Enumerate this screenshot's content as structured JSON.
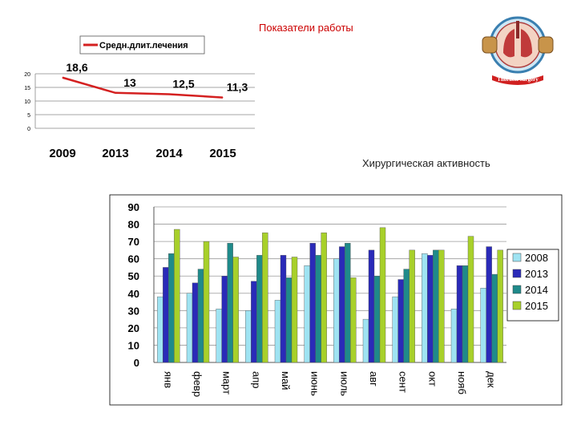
{
  "header": {
    "title": "Показатели работы",
    "subtitle": "Хирургическая активность"
  },
  "logo": {
    "top_text": "",
    "bottom_text": "Thoracic surgery"
  },
  "chart_data": [
    {
      "type": "line",
      "title": "",
      "legend": {
        "position": "top",
        "entries": [
          "Средн.длит.лечения"
        ]
      },
      "categories": [
        "2009",
        "2013",
        "2014",
        "2015"
      ],
      "series": [
        {
          "name": "Средн.длит.лечения",
          "values": [
            18.6,
            13,
            12.5,
            11.3
          ],
          "labels": [
            "18,6",
            "13",
            "12,5",
            "11,3"
          ],
          "color": "#d42020"
        }
      ],
      "yticks": [
        "0",
        "5",
        "10",
        "15",
        "20"
      ],
      "ylim": [
        0,
        20
      ],
      "grid": true
    },
    {
      "type": "bar",
      "title": "",
      "categories": [
        "янв",
        "февр",
        "март",
        "апр",
        "май",
        "июнь",
        "июль",
        "авг",
        "сент",
        "окт",
        "нояб",
        "дек"
      ],
      "series": [
        {
          "name": "2008",
          "color": "#9fe3f2",
          "values": [
            38,
            40,
            31,
            30,
            36,
            56,
            60,
            25,
            38,
            63,
            31,
            43
          ]
        },
        {
          "name": "2013",
          "color": "#2a2ab8",
          "values": [
            55,
            46,
            50,
            47,
            62,
            69,
            67,
            65,
            48,
            62,
            56,
            67
          ]
        },
        {
          "name": "2014",
          "color": "#1f8a8a",
          "values": [
            63,
            54,
            69,
            62,
            49,
            62,
            69,
            50,
            54,
            65,
            56,
            51
          ]
        },
        {
          "name": "2015",
          "color": "#a8d02a",
          "values": [
            77,
            70,
            61,
            75,
            61,
            75,
            49,
            78,
            65,
            65,
            73,
            65
          ]
        }
      ],
      "yticks": [
        "0",
        "10",
        "20",
        "30",
        "40",
        "50",
        "60",
        "70",
        "80",
        "90"
      ],
      "ylim": [
        0,
        90
      ],
      "grid": true,
      "legend": {
        "position": "right",
        "entries": [
          "2008",
          "2013",
          "2014",
          "2015"
        ]
      }
    }
  ]
}
